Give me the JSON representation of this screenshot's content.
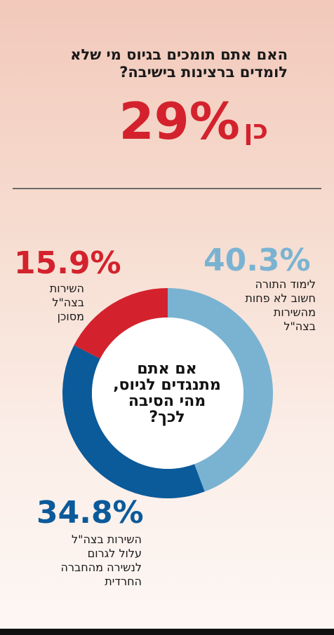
{
  "header": {
    "question_line1": "האם אתם תומכים בגיוס מי שלא",
    "question_line2": "לומדים ברצינות בישיבה?",
    "answer_percent": "29%",
    "answer_word": "כן"
  },
  "center_question": {
    "line1": "אם אתם",
    "line2": "מתנגדים לגיוס,",
    "line3": "מהי הסיבה",
    "line4": "לכך?"
  },
  "colors": {
    "light_blue": "#7ab3d2",
    "dark_blue": "#0b5a9a",
    "red": "#d3222d"
  },
  "chart_data": {
    "type": "pie",
    "style": "donut",
    "slices": [
      {
        "label_lines": [
          "לימוד התורה",
          "חשוב לא פחות",
          "מהשירות",
          "בצה\"ל"
        ],
        "value": 40.3,
        "display": "40.3%",
        "color": "#7ab3d2"
      },
      {
        "label_lines": [
          "השירות בצה\"ל",
          "עלול לגרום",
          "לנשירה מהחברה",
          "החרדית"
        ],
        "value": 34.8,
        "display": "34.8%",
        "color": "#0b5a9a"
      },
      {
        "label_lines": [
          "השירות",
          "בצה\"ל",
          "מסוכן"
        ],
        "value": 15.9,
        "display": "15.9%",
        "color": "#d3222d"
      }
    ]
  }
}
